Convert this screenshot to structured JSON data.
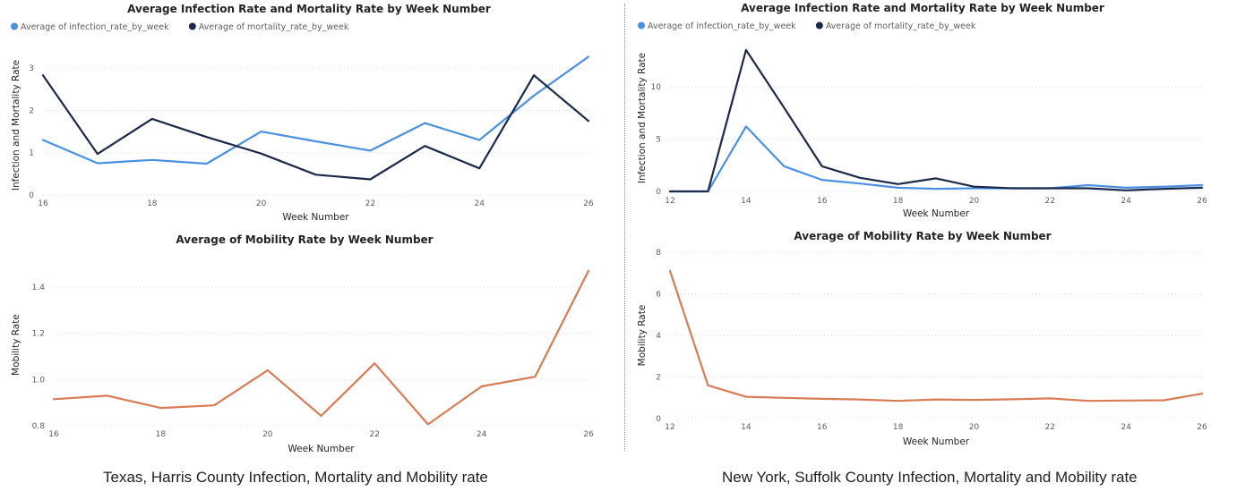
{
  "panels": [
    {
      "caption": "Texas, Harris County Infection, Mortality and Mobility rate",
      "charts": [
        {
          "type": "line",
          "title": "Average Infection Rate and Mortality Rate by Week Number",
          "xlabel": "Week Number",
          "ylabel": "Infection and Mortality Rate",
          "xlim": [
            16,
            26
          ],
          "ylim": [
            0,
            3.3
          ],
          "xticks": [
            16,
            18,
            20,
            22,
            24,
            26
          ],
          "yticks": [
            0,
            1,
            2,
            3
          ],
          "legend_position": "top-left",
          "grid": true,
          "x": [
            16,
            17,
            18,
            19,
            20,
            21,
            22,
            23,
            24,
            25,
            26
          ],
          "series": [
            {
              "name": "Average of infection_rate_by_week",
              "color": "#4a90e2",
              "values": [
                1.3,
                0.75,
                0.83,
                0.74,
                1.5,
                1.27,
                1.05,
                1.7,
                1.3,
                2.35,
                3.27
              ]
            },
            {
              "name": "Average of mortality_rate_by_week",
              "color": "#1b2a4a",
              "values": [
                2.83,
                0.97,
                1.8,
                1.37,
                0.98,
                0.48,
                0.37,
                1.16,
                0.63,
                2.83,
                1.75
              ]
            }
          ]
        },
        {
          "type": "line",
          "title": "Average of Mobility Rate by Week Number",
          "xlabel": "Week Number",
          "ylabel": "Mobility Rate",
          "xlim": [
            16,
            26
          ],
          "ylim": [
            0.8,
            1.5
          ],
          "xticks": [
            16,
            18,
            20,
            22,
            24,
            26
          ],
          "yticks": [
            0.8,
            1.0,
            1.2,
            1.4
          ],
          "ytick_labels": [
            "0.8",
            "1.0",
            "1.2",
            "1.4"
          ],
          "grid": true,
          "x": [
            16,
            17,
            18,
            19,
            20,
            21,
            22,
            23,
            24,
            25,
            26
          ],
          "series": [
            {
              "color": "#d97b54",
              "values": [
                0.915,
                0.93,
                0.877,
                0.888,
                1.04,
                0.843,
                1.07,
                0.806,
                0.97,
                1.012,
                1.47
              ]
            }
          ]
        }
      ]
    },
    {
      "caption": "New York, Suffolk County Infection, Mortality and Mobility rate",
      "charts": [
        {
          "type": "line",
          "title": "Average Infection Rate and Mortality Rate by Week Number",
          "xlabel": "Week Number",
          "ylabel": "Infection and Mortality Rate",
          "xlim": [
            12,
            26
          ],
          "ylim": [
            0,
            14
          ],
          "xticks": [
            12,
            14,
            16,
            18,
            20,
            22,
            24,
            26
          ],
          "yticks": [
            0,
            5,
            10
          ],
          "legend_position": "top-left",
          "grid": true,
          "x": [
            12,
            13,
            14,
            15,
            16,
            17,
            18,
            19,
            20,
            21,
            22,
            23,
            24,
            25,
            26
          ],
          "series": [
            {
              "name": "Average of infection_rate_by_week",
              "color": "#4a90e2",
              "values": [
                0,
                0,
                6.2,
                2.4,
                1.1,
                0.75,
                0.35,
                0.25,
                0.3,
                0.3,
                0.3,
                0.6,
                0.35,
                0.45,
                0.6
              ]
            },
            {
              "name": "Average of mortality_rate_by_week",
              "color": "#1b2a4a",
              "values": [
                0,
                0,
                13.5,
                8.0,
                2.4,
                1.3,
                0.7,
                1.25,
                0.45,
                0.3,
                0.3,
                0.3,
                0.1,
                0.25,
                0.35
              ]
            }
          ]
        },
        {
          "type": "line",
          "title": "Average of Mobility Rate by Week Number",
          "xlabel": "Week Number",
          "ylabel": "Mobility Rate",
          "xlim": [
            12,
            26
          ],
          "ylim": [
            0,
            8
          ],
          "xticks": [
            12,
            14,
            16,
            18,
            20,
            22,
            24,
            26
          ],
          "yticks": [
            0,
            2,
            4,
            6,
            8
          ],
          "grid": true,
          "x": [
            12,
            13,
            14,
            15,
            16,
            17,
            18,
            19,
            20,
            21,
            22,
            23,
            24,
            25,
            26
          ],
          "series": [
            {
              "color": "#d97b54",
              "values": [
                7.1,
                1.6,
                1.05,
                1.0,
                0.95,
                0.92,
                0.85,
                0.92,
                0.9,
                0.93,
                0.97,
                0.85,
                0.87,
                0.88,
                1.2
              ]
            }
          ]
        }
      ]
    }
  ]
}
